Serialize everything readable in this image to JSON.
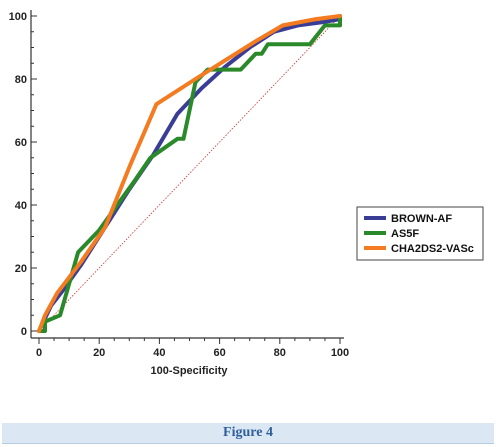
{
  "chart_data": {
    "type": "line",
    "xlabel": "100-Specificity",
    "ylabel": "",
    "xlim": [
      0,
      100
    ],
    "ylim": [
      0,
      100
    ],
    "x_ticks": [
      0,
      20,
      40,
      60,
      80,
      100
    ],
    "y_ticks": [
      0,
      20,
      40,
      60,
      80,
      100
    ],
    "legend_position": "right",
    "reference_line": {
      "x": [
        0,
        100
      ],
      "y": [
        0,
        100
      ],
      "color": "#cc3333",
      "style": "dotted"
    },
    "series": [
      {
        "name": "BROWN-AF",
        "color": "#3a3d96",
        "x": [
          0,
          2,
          4,
          8,
          14,
          22,
          30,
          38,
          46,
          54,
          62,
          70,
          78,
          86,
          94,
          100
        ],
        "y": [
          0,
          4,
          8,
          13,
          21,
          33,
          45,
          56,
          69,
          77,
          84,
          90,
          95,
          97,
          98,
          99
        ]
      },
      {
        "name": "AS5F",
        "color": "#2a8a2a",
        "x": [
          0,
          2,
          2,
          7,
          13,
          20,
          32,
          37,
          46,
          48,
          52,
          56,
          64,
          67,
          72,
          74,
          76,
          80,
          87,
          90,
          95,
          100,
          100
        ],
        "y": [
          0,
          0,
          3,
          5,
          25,
          32,
          48,
          55,
          61,
          61,
          79,
          83,
          83,
          83,
          88,
          88,
          91,
          91,
          91,
          91,
          97,
          97,
          100
        ]
      },
      {
        "name": "CHA2DS2-VASc",
        "color": "#f47b20",
        "x": [
          0,
          2,
          6,
          14,
          22,
          30,
          39,
          52,
          62,
          72,
          81,
          92,
          100
        ],
        "y": [
          0,
          5,
          12,
          22,
          33,
          52,
          72,
          80,
          86,
          92,
          97,
          99,
          100
        ]
      }
    ]
  },
  "caption": {
    "text": "Figure 4"
  }
}
